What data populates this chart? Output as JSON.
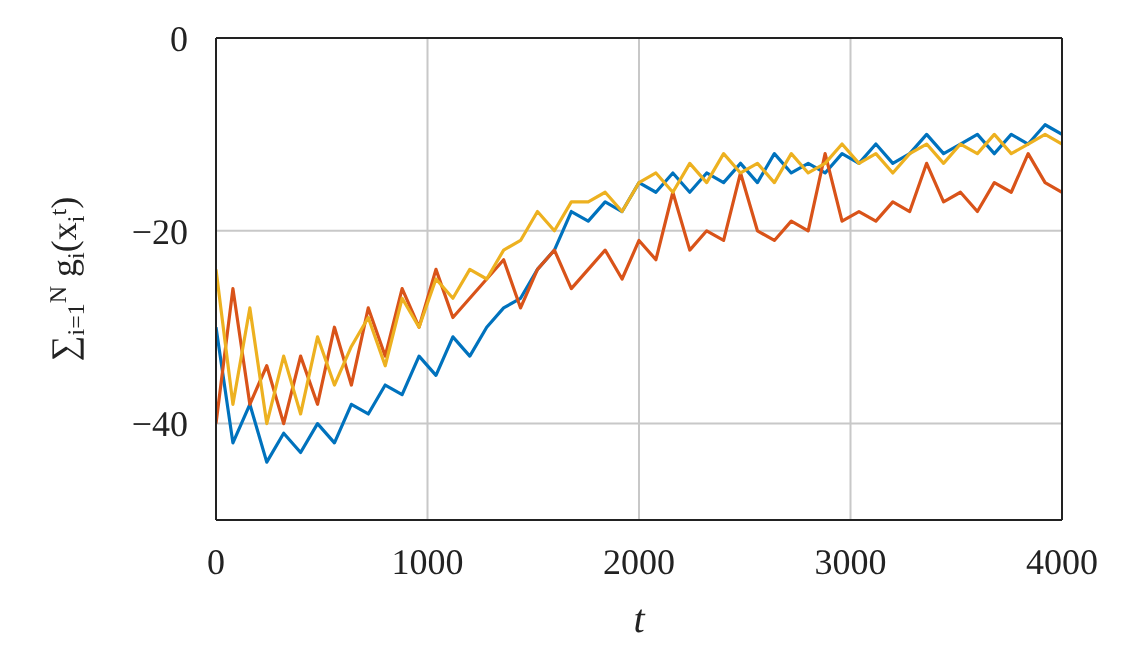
{
  "chart_data": {
    "type": "line",
    "xlabel": "t",
    "ylabel": "∑$_{i=1}$$^{N}$ g$_{i}$(x$_{i}$$^{t}$)",
    "x": [
      0,
      80,
      160,
      240,
      320,
      400,
      480,
      560,
      640,
      720,
      800,
      880,
      960,
      1040,
      1120,
      1200,
      1280,
      1360,
      1440,
      1520,
      1600,
      1680,
      1760,
      1840,
      1920,
      2000,
      2080,
      2160,
      2240,
      2320,
      2400,
      2480,
      2560,
      2640,
      2720,
      2800,
      2880,
      2960,
      3040,
      3120,
      3200,
      3280,
      3360,
      3440,
      3520,
      3600,
      3680,
      3760,
      3840,
      3920,
      4000
    ],
    "series": [
      {
        "color": "#0072bd",
        "values": [
          -30,
          -42,
          -38,
          -44,
          -41,
          -43,
          -40,
          -42,
          -38,
          -39,
          -36,
          -37,
          -33,
          -35,
          -31,
          -33,
          -30,
          -28,
          -27,
          -24,
          -22,
          -18,
          -19,
          -17,
          -18,
          -15,
          -16,
          -14,
          -16,
          -14,
          -15,
          -13,
          -15,
          -12,
          -14,
          -13,
          -14,
          -12,
          -13,
          -11,
          -13,
          -12,
          -10,
          -12,
          -11,
          -10,
          -12,
          -10,
          -11,
          -9,
          -10
        ]
      },
      {
        "color": "#d95319",
        "values": [
          -40,
          -26,
          -38,
          -34,
          -40,
          -33,
          -38,
          -30,
          -36,
          -28,
          -33,
          -26,
          -30,
          -24,
          -29,
          -27,
          -25,
          -23,
          -28,
          -24,
          -22,
          -26,
          -24,
          -22,
          -25,
          -21,
          -23,
          -16,
          -22,
          -20,
          -21,
          -14,
          -20,
          -21,
          -19,
          -20,
          -12,
          -19,
          -18,
          -19,
          -17,
          -18,
          -13,
          -17,
          -16,
          -18,
          -15,
          -16,
          -12,
          -15,
          -16
        ]
      },
      {
        "color": "#edb120",
        "values": [
          -24,
          -38,
          -28,
          -40,
          -33,
          -39,
          -31,
          -36,
          -32,
          -29,
          -34,
          -27,
          -30,
          -25,
          -27,
          -24,
          -25,
          -22,
          -21,
          -18,
          -20,
          -17,
          -17,
          -16,
          -18,
          -15,
          -14,
          -16,
          -13,
          -15,
          -12,
          -14,
          -13,
          -15,
          -12,
          -14,
          -13,
          -11,
          -13,
          -12,
          -14,
          -12,
          -11,
          -13,
          -11,
          -12,
          -10,
          -12,
          -11,
          -10,
          -11
        ]
      }
    ],
    "xlim": [
      0,
      4000
    ],
    "xticks": [
      0,
      1000,
      2000,
      3000,
      4000
    ],
    "ylim": [
      -50,
      0
    ],
    "yticks": [
      -40,
      -20,
      0
    ],
    "grid": true,
    "legend": false,
    "marker": "none",
    "line_style": "solid"
  }
}
